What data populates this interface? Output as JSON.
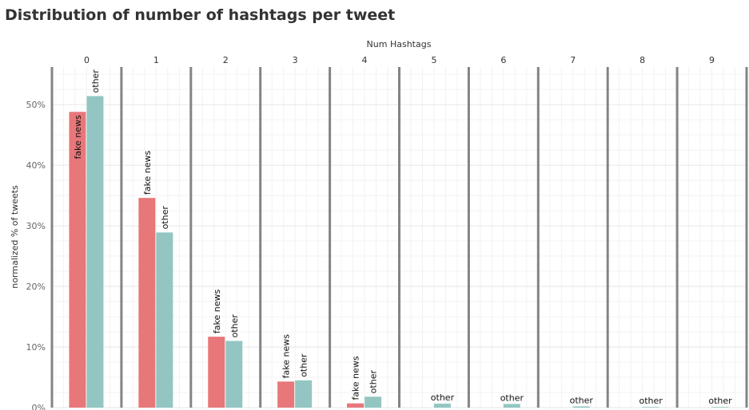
{
  "chart_data": {
    "type": "bar",
    "title": "Distribution of number of hashtags per tweet",
    "xlabel": "Num Hashtags",
    "ylabel": "normalized % of tweets",
    "categories": [
      "0",
      "1",
      "2",
      "3",
      "4",
      "5",
      "6",
      "7",
      "8",
      "9"
    ],
    "series": [
      {
        "name": "fake news",
        "color": "#e8777a",
        "values": [
          48.8,
          34.6,
          11.7,
          4.3,
          0.7,
          0,
          0,
          0,
          0,
          0
        ],
        "labels": [
          "fake news",
          "fake news",
          "fake news",
          "fake news",
          "fake news",
          "",
          "",
          "",
          "",
          ""
        ]
      },
      {
        "name": "other",
        "color": "#93c6c2",
        "values": [
          51.4,
          28.9,
          11.0,
          4.5,
          1.8,
          0.65,
          0.6,
          0.2,
          0.1,
          0.1
        ],
        "labels": [
          "other",
          "other",
          "other",
          "other",
          "other",
          "other",
          "other",
          "other",
          "other",
          "other"
        ]
      }
    ],
    "y_ticks": [
      "0%",
      "10%",
      "20%",
      "30%",
      "40%",
      "50%"
    ],
    "y_tick_values": [
      0,
      10,
      20,
      30,
      40,
      50
    ],
    "ylim": [
      0,
      56.2
    ],
    "grid": true
  }
}
